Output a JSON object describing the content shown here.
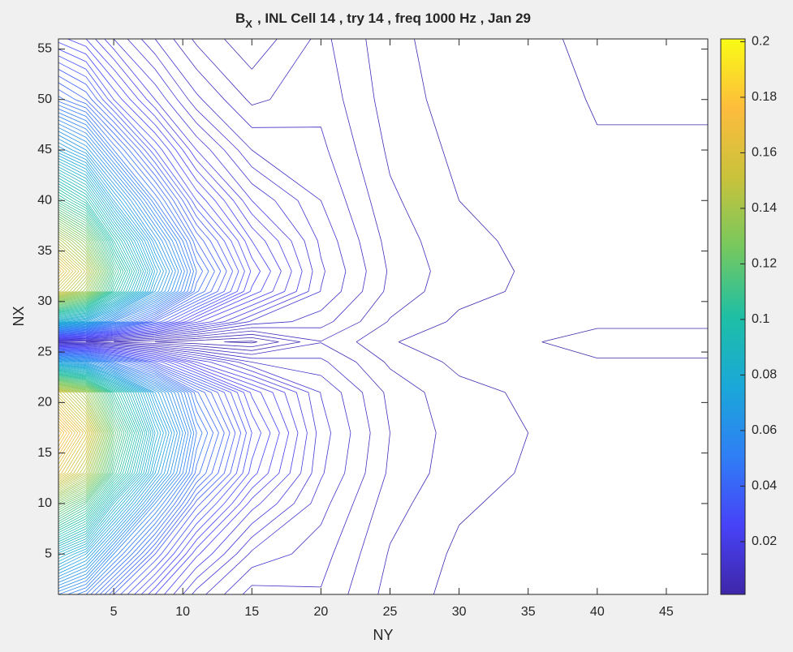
{
  "chart_data": {
    "type": "contour",
    "title": "B",
    "title_subscript": "X",
    "title_rest": ",  INL Cell  14 , try 14 , freq 1000 Hz , Jan 29",
    "xlabel": "NY",
    "ylabel": "NX",
    "x": [
      1,
      3,
      5,
      8,
      11,
      15,
      20,
      25,
      30,
      35,
      40,
      48
    ],
    "y": [
      1,
      5,
      10,
      13,
      17,
      21,
      24,
      26,
      28,
      31,
      33,
      36,
      40,
      45,
      50,
      56
    ],
    "z": [
      [
        0.054,
        0.048,
        0.036,
        0.024,
        0.015,
        0.009,
        0.0098,
        0.0052,
        0.0033,
        0.0026,
        0.002,
        0.002
      ],
      [
        0.081,
        0.072,
        0.054,
        0.036,
        0.0225,
        0.0135,
        0.0109,
        0.0058,
        0.0036,
        0.0029,
        0.0022,
        0.0022
      ],
      [
        0.126,
        0.112,
        0.084,
        0.056,
        0.035,
        0.021,
        0.0128,
        0.0068,
        0.0043,
        0.0034,
        0.0026,
        0.0026
      ],
      [
        0.162,
        0.144,
        0.108,
        0.072,
        0.045,
        0.027,
        0.0143,
        0.0076,
        0.0048,
        0.0038,
        0.0029,
        0.0029
      ],
      [
        0.18,
        0.16,
        0.12,
        0.08,
        0.05,
        0.03,
        0.015,
        0.008,
        0.005,
        0.004,
        0.003,
        0.003
      ],
      [
        0.153,
        0.136,
        0.102,
        0.068,
        0.0425,
        0.0255,
        0.0139,
        0.0074,
        0.0046,
        0.0037,
        0.0028,
        0.0028
      ],
      [
        0.072,
        0.064,
        0.048,
        0.032,
        0.02,
        0.012,
        0.0105,
        0.0056,
        0.0035,
        0.0028,
        0.0021,
        0.0021
      ],
      [
        0.009,
        0.008,
        0.006,
        0.004,
        0.0025,
        0.0015,
        0.0079,
        0.0042,
        0.0026,
        0.0021,
        0.0016,
        0.0016
      ],
      [
        0.081,
        0.072,
        0.054,
        0.036,
        0.0225,
        0.0135,
        0.0109,
        0.0058,
        0.0036,
        0.0029,
        0.0022,
        0.0022
      ],
      [
        0.153,
        0.136,
        0.102,
        0.068,
        0.0425,
        0.0255,
        0.0139,
        0.0074,
        0.0046,
        0.0037,
        0.0028,
        0.0028
      ],
      [
        0.1656,
        0.1472,
        0.1104,
        0.0736,
        0.046,
        0.0276,
        0.0144,
        0.0077,
        0.0048,
        0.0038,
        0.0029,
        0.0029
      ],
      [
        0.144,
        0.128,
        0.096,
        0.064,
        0.04,
        0.024,
        0.0135,
        0.0072,
        0.0045,
        0.0036,
        0.0027,
        0.0027
      ],
      [
        0.108,
        0.096,
        0.072,
        0.048,
        0.03,
        0.018,
        0.012,
        0.0064,
        0.004,
        0.0032,
        0.0024,
        0.0024
      ],
      [
        0.072,
        0.064,
        0.048,
        0.032,
        0.02,
        0.012,
        0.0105,
        0.0056,
        0.0035,
        0.0028,
        0.0021,
        0.0021
      ],
      [
        0.045,
        0.04,
        0.03,
        0.02,
        0.0125,
        0.0075,
        0.0094,
        0.005,
        0.0031,
        0.0025,
        0.0019,
        0.0019
      ],
      [
        0.027,
        0.024,
        0.018,
        0.012,
        0.0075,
        0.0045,
        0.0086,
        0.0046,
        0.0029,
        0.0023,
        0.0017,
        0.0017
      ]
    ],
    "levels": [
      0.002,
      0.004,
      0.006,
      0.008,
      0.01,
      0.012,
      0.014,
      0.016,
      0.018,
      0.02,
      0.022,
      0.024,
      0.026,
      0.028,
      0.03,
      0.032,
      0.034,
      0.036,
      0.038,
      0.04,
      0.042,
      0.044,
      0.046,
      0.048,
      0.05,
      0.052,
      0.054,
      0.056,
      0.058,
      0.06,
      0.062,
      0.064,
      0.066,
      0.068,
      0.07,
      0.072,
      0.074,
      0.076,
      0.078,
      0.08,
      0.082,
      0.084,
      0.086,
      0.088,
      0.09,
      0.092,
      0.094,
      0.096,
      0.098,
      0.1,
      0.102,
      0.104,
      0.106,
      0.108,
      0.11,
      0.112,
      0.114,
      0.116,
      0.118,
      0.12,
      0.122,
      0.124,
      0.126,
      0.128,
      0.13,
      0.132,
      0.134,
      0.136,
      0.138,
      0.14,
      0.142,
      0.144,
      0.146,
      0.148,
      0.15,
      0.152,
      0.154,
      0.156,
      0.158,
      0.16,
      0.162,
      0.164,
      0.166,
      0.168,
      0.17,
      0.172,
      0.174,
      0.176,
      0.178,
      0.18
    ],
    "xlim": [
      1,
      48
    ],
    "ylim": [
      1,
      56
    ],
    "xticks": [
      5,
      10,
      15,
      20,
      25,
      30,
      35,
      40,
      45
    ],
    "yticks": [
      5,
      10,
      15,
      20,
      25,
      30,
      35,
      40,
      45,
      50,
      55
    ],
    "clim": [
      0.001,
      0.201
    ],
    "cticks": [
      0.02,
      0.04,
      0.06,
      0.08,
      0.1,
      0.12,
      0.14,
      0.16,
      0.18,
      0.2
    ],
    "colormap": [
      "#3e26a8",
      "#4743f8",
      "#2f7ff5",
      "#1aa8d8",
      "#1ebfa5",
      "#76c85e",
      "#c9c23b",
      "#fdbc3c",
      "#f9fb15"
    ]
  }
}
